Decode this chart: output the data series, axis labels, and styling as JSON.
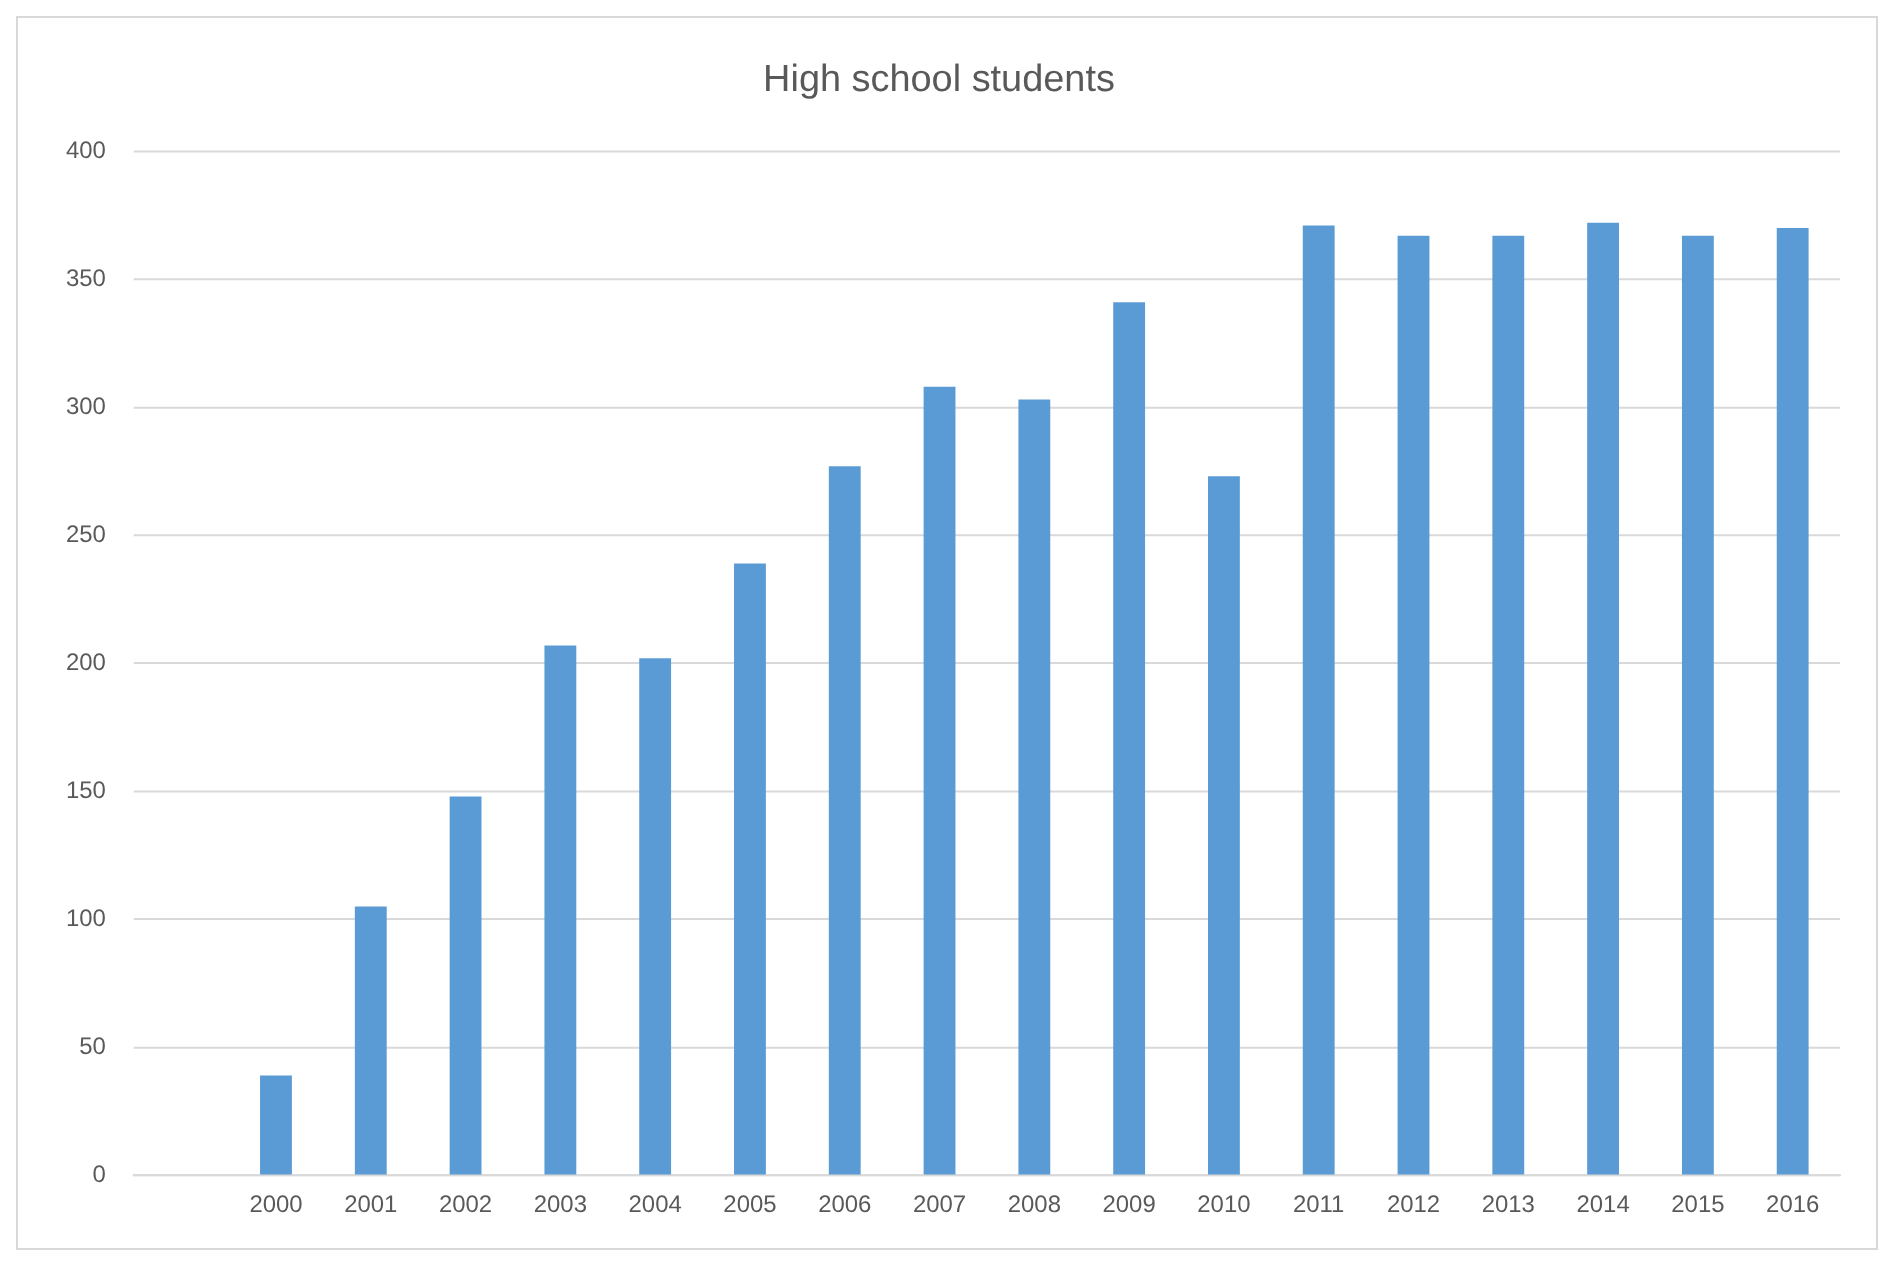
{
  "chart_data": {
    "type": "bar",
    "title": "High school students",
    "categories": [
      null,
      "2000",
      "2001",
      "2002",
      "2003",
      "2004",
      "2005",
      "2006",
      "2007",
      "2008",
      "2009",
      "2010",
      "2011",
      "2012",
      "2013",
      "2014",
      "2015",
      "2016"
    ],
    "values": [
      null,
      39,
      105,
      148,
      207,
      202,
      239,
      277,
      308,
      303,
      341,
      273,
      371,
      367,
      367,
      372,
      367,
      370
    ],
    "color": "#5b9bd5",
    "ylim": [
      0,
      400
    ],
    "yticks": [
      0,
      50,
      100,
      150,
      200,
      250,
      300,
      350,
      400
    ],
    "grid": "y"
  }
}
